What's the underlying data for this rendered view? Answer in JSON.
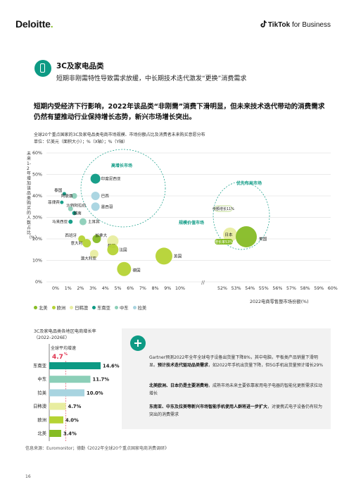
{
  "header": {
    "brand_left": "Deloitte",
    "brand_left_dot": ".",
    "brand_right_bold": "TikTok",
    "brand_right_rest": " for Business"
  },
  "section": {
    "title": "3C及家电品类",
    "subtitle": "短期非刚需特性导致需求放缓，中长期技术迭代激发“更换”消费需求"
  },
  "headline": "短期内受经济下行影响，2022年该品类“非刚需”消费下滑明显，但未来技术迭代带动的消费需求仍然有望推动行业保持增长态势，新兴市场增长突出。",
  "chart_data": {
    "type": "scatter",
    "title": "全球20个重点国家的3C及家电品类电商市场规模、市场份额占比及消费者未来购买意愿分布",
    "unit": "单位：亿美元（面积大小）；%（X轴）；%（Y轴）",
    "ylabel": "未来1-2年增加该品类购买的人数占比（%）",
    "xlabel": "2022电商零售整市场份额(%)",
    "y_ticks": [
      "60%",
      "50%",
      "40%",
      "30%",
      "20%",
      "10%",
      "0%"
    ],
    "x_ticks_left": [
      "0%",
      "1%",
      "2%",
      "3%",
      "4%",
      "5%",
      "6%",
      "7%",
      "8%",
      "9%",
      "10%"
    ],
    "x_ticks_right": [
      "52%",
      "53%",
      "54%",
      "55%",
      "56%",
      "57%",
      "58%",
      "59%",
      "60%"
    ],
    "ylim": [
      0,
      60
    ],
    "zones": [
      "高增长市场",
      "优先布局市场",
      "规模价值市场"
    ],
    "legend": [
      {
        "name": "北美",
        "color": "#86bc25"
      },
      {
        "name": "欧洲",
        "color": "#b5d334"
      },
      {
        "name": "日韩澳",
        "color": "#e8eda0"
      },
      {
        "name": "东南亚",
        "color": "#0d9a84"
      },
      {
        "name": "中东",
        "color": "#8ccfb8"
      },
      {
        "name": "拉美",
        "color": "#a8d4e0"
      }
    ],
    "points": [
      {
        "label": "印度尼西亚",
        "region": "东南亚",
        "x": 3.2,
        "y": 48
      },
      {
        "label": "泰国",
        "region": "东南亚",
        "x": 0.7,
        "y": 41
      },
      {
        "label": "阿联酋",
        "region": "中东",
        "x": 1.5,
        "y": 40
      },
      {
        "label": "巴西",
        "region": "拉美",
        "x": 3.2,
        "y": 40
      },
      {
        "label": "菲律宾",
        "region": "东南亚",
        "x": 0.5,
        "y": 37
      },
      {
        "label": "沙特阿拉伯",
        "region": "中东",
        "x": 1.2,
        "y": 34
      },
      {
        "label": "越南",
        "region": "东南亚",
        "x": 1.5,
        "y": 32
      },
      {
        "label": "墨西哥",
        "region": "拉美",
        "x": 3.2,
        "y": 35
      },
      {
        "label": "马来西亚",
        "region": "东南亚",
        "x": 1.2,
        "y": 28
      },
      {
        "label": "土耳其",
        "region": "中东",
        "x": 2.2,
        "y": 28
      },
      {
        "label": "西班牙",
        "region": "欧洲",
        "x": 2.1,
        "y": 20
      },
      {
        "label": "加拿大",
        "region": "北美",
        "x": 3.3,
        "y": 20
      },
      {
        "label": "意大利",
        "region": "欧洲",
        "x": 2.5,
        "y": 18
      },
      {
        "label": "韩国",
        "region": "日韩澳",
        "x": 4.6,
        "y": 19
      },
      {
        "label": "法国",
        "region": "欧洲",
        "x": 4.6,
        "y": 15
      },
      {
        "label": "澳大利亚",
        "region": "日韩澳",
        "x": 3.1,
        "y": 13
      },
      {
        "label": "英国",
        "region": "欧洲",
        "x": 8.7,
        "y": 12
      },
      {
        "label": "德国",
        "region": "欧洲",
        "x": 5.5,
        "y": 6
      },
      {
        "label": "日本",
        "region": "日韩澳",
        "x": 8.4,
        "y": 22
      },
      {
        "label": "美国",
        "region": "北美",
        "x": 10.7,
        "y": 21
      }
    ],
    "callout": {
      "value": "1,818",
      "share_prefix": "份额增长",
      "share_value": "11%",
      "growth_prefix": "增长率",
      "growth_value": "53%"
    }
  },
  "bar_chart": {
    "title_line1": "3C及家电品类各地区电商增长率",
    "title_line2": "（2022–2026E）",
    "avg_label": "全球平均增速",
    "avg_value": "4.7",
    "avg_unit": "%",
    "bars": [
      {
        "region": "东南亚",
        "value": 14.6,
        "label": "14.6%",
        "color": "#0d9a84"
      },
      {
        "region": "中东",
        "value": 11.7,
        "label": "11.7%",
        "color": "#8ccfb8"
      },
      {
        "region": "拉美",
        "value": 10.0,
        "label": "10.0%",
        "color": "#a8d4e0"
      },
      {
        "region": "日韩澳",
        "value": 4.7,
        "label": "4.7%",
        "color": "#e8eda0"
      },
      {
        "region": "欧洲",
        "value": 4.0,
        "label": "4.0%",
        "color": "#b5d334"
      },
      {
        "region": "北美",
        "value": 3.4,
        "label": "3.4%",
        "color": "#86bc25"
      }
    ]
  },
  "box": {
    "p1": "Gartner预测2022年全年全球电子设备出货量下降8%，其中电脑，平板类产品销量下滑明显。",
    "p1_bold": "预计技术迭代驱动品类需求",
    "p1_tail": "，如2022年手机出货量下降，但5G手机出货量预计增长29%",
    "p2_bold": "北美欧洲、日本仍是主要消费地",
    "p2_tail": "，成熟市场未来主要依靠家用电子电器的智能化更新需求拉动增长",
    "p3_bold": "东南亚、中东及拉美等新兴市场智能手机使用人群将进一步扩大",
    "p3_tail": "，对便携式电子设备仍有较为突出的消费需求"
  },
  "footer": {
    "source": "信息来源：Euromonitor；德勤《2022年全球20个重点国家电商消费调研》",
    "page": "16"
  }
}
